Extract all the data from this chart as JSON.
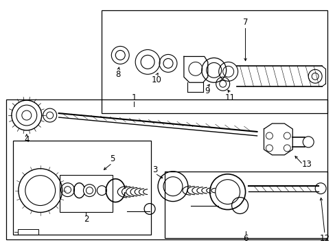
{
  "bg_color": "#ffffff",
  "line_color": "#000000",
  "fig_w": 4.89,
  "fig_h": 3.6,
  "dpi": 100
}
